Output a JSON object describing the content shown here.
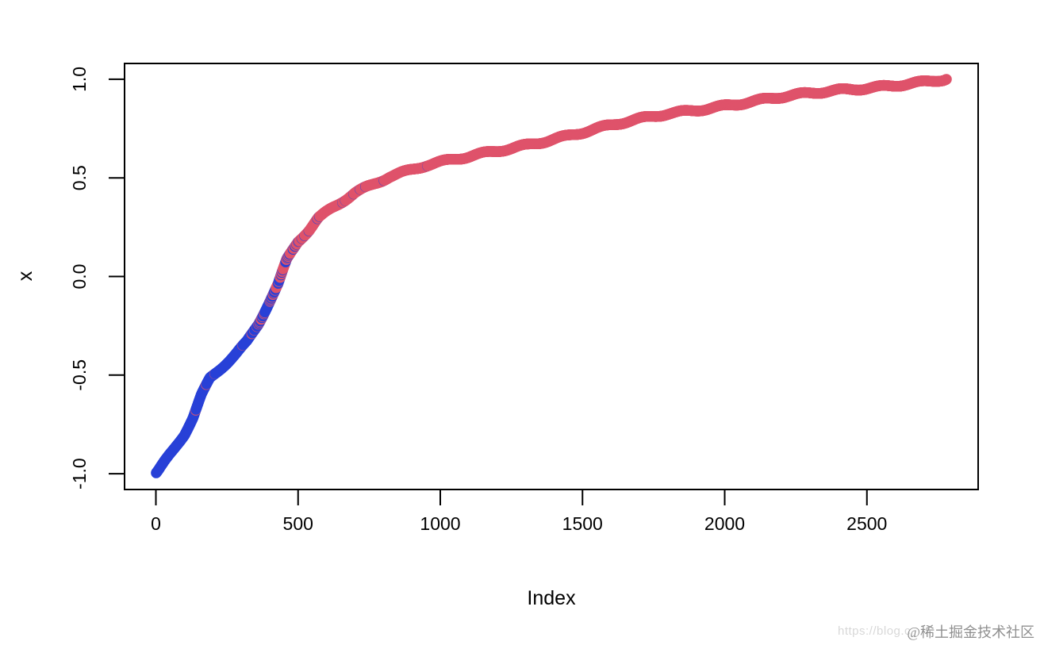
{
  "chart_data": {
    "type": "scatter",
    "title": "",
    "xlabel": "Index",
    "ylabel": "x",
    "xlim": [
      1,
      2780
    ],
    "ylim": [
      -1,
      1
    ],
    "n_points": 2780,
    "grid": false,
    "legend": "none",
    "point_style": "open-circle",
    "x_ticks": [
      {
        "v": 0,
        "label": "0"
      },
      {
        "v": 500,
        "label": "500"
      },
      {
        "v": 1000,
        "label": "1000"
      },
      {
        "v": 1500,
        "label": "1500"
      },
      {
        "v": 2000,
        "label": "2000"
      },
      {
        "v": 2500,
        "label": "2500"
      }
    ],
    "y_ticks": [
      {
        "v": -1.0,
        "label": "-1.0"
      },
      {
        "v": -0.5,
        "label": "-0.5"
      },
      {
        "v": 0.0,
        "label": "0.0"
      },
      {
        "v": 0.5,
        "label": "0.5"
      },
      {
        "v": 1.0,
        "label": "1.0"
      }
    ],
    "series": [
      {
        "name": "blue-points",
        "color": "#2841D7"
      },
      {
        "name": "red-points",
        "color": "#DF536B"
      }
    ],
    "description": "Values of x sorted ascending and plotted against index; points are blue for low x and red for high x, with blue/red interleaving in the transition around x = 0 (index ~350-650).",
    "quantile_anchors": [
      [
        1,
        -1.0
      ],
      [
        10,
        -0.985
      ],
      [
        30,
        -0.945
      ],
      [
        60,
        -0.885
      ],
      [
        100,
        -0.8
      ],
      [
        130,
        -0.715
      ],
      [
        160,
        -0.6
      ],
      [
        190,
        -0.515
      ],
      [
        240,
        -0.445
      ],
      [
        280,
        -0.39
      ],
      [
        320,
        -0.33
      ],
      [
        360,
        -0.24
      ],
      [
        400,
        -0.125
      ],
      [
        430,
        -0.04
      ],
      [
        460,
        0.08
      ],
      [
        500,
        0.175
      ],
      [
        540,
        0.235
      ],
      [
        570,
        0.29
      ],
      [
        620,
        0.345
      ],
      [
        700,
        0.425
      ],
      [
        820,
        0.51
      ],
      [
        950,
        0.565
      ],
      [
        1100,
        0.605
      ],
      [
        1250,
        0.65
      ],
      [
        1400,
        0.7
      ],
      [
        1600,
        0.765
      ],
      [
        1800,
        0.825
      ],
      [
        2000,
        0.868
      ],
      [
        2200,
        0.908
      ],
      [
        2400,
        0.945
      ],
      [
        2600,
        0.972
      ],
      [
        2700,
        0.985
      ],
      [
        2770,
        0.996
      ],
      [
        2780,
        1.0
      ]
    ],
    "color_rule": {
      "type": "logistic-in-x",
      "scale": 0.11,
      "seed": 11
    }
  },
  "watermark": {
    "url_text": "https://blog.c",
    "community_text": "@稀土掘金技术社区"
  }
}
